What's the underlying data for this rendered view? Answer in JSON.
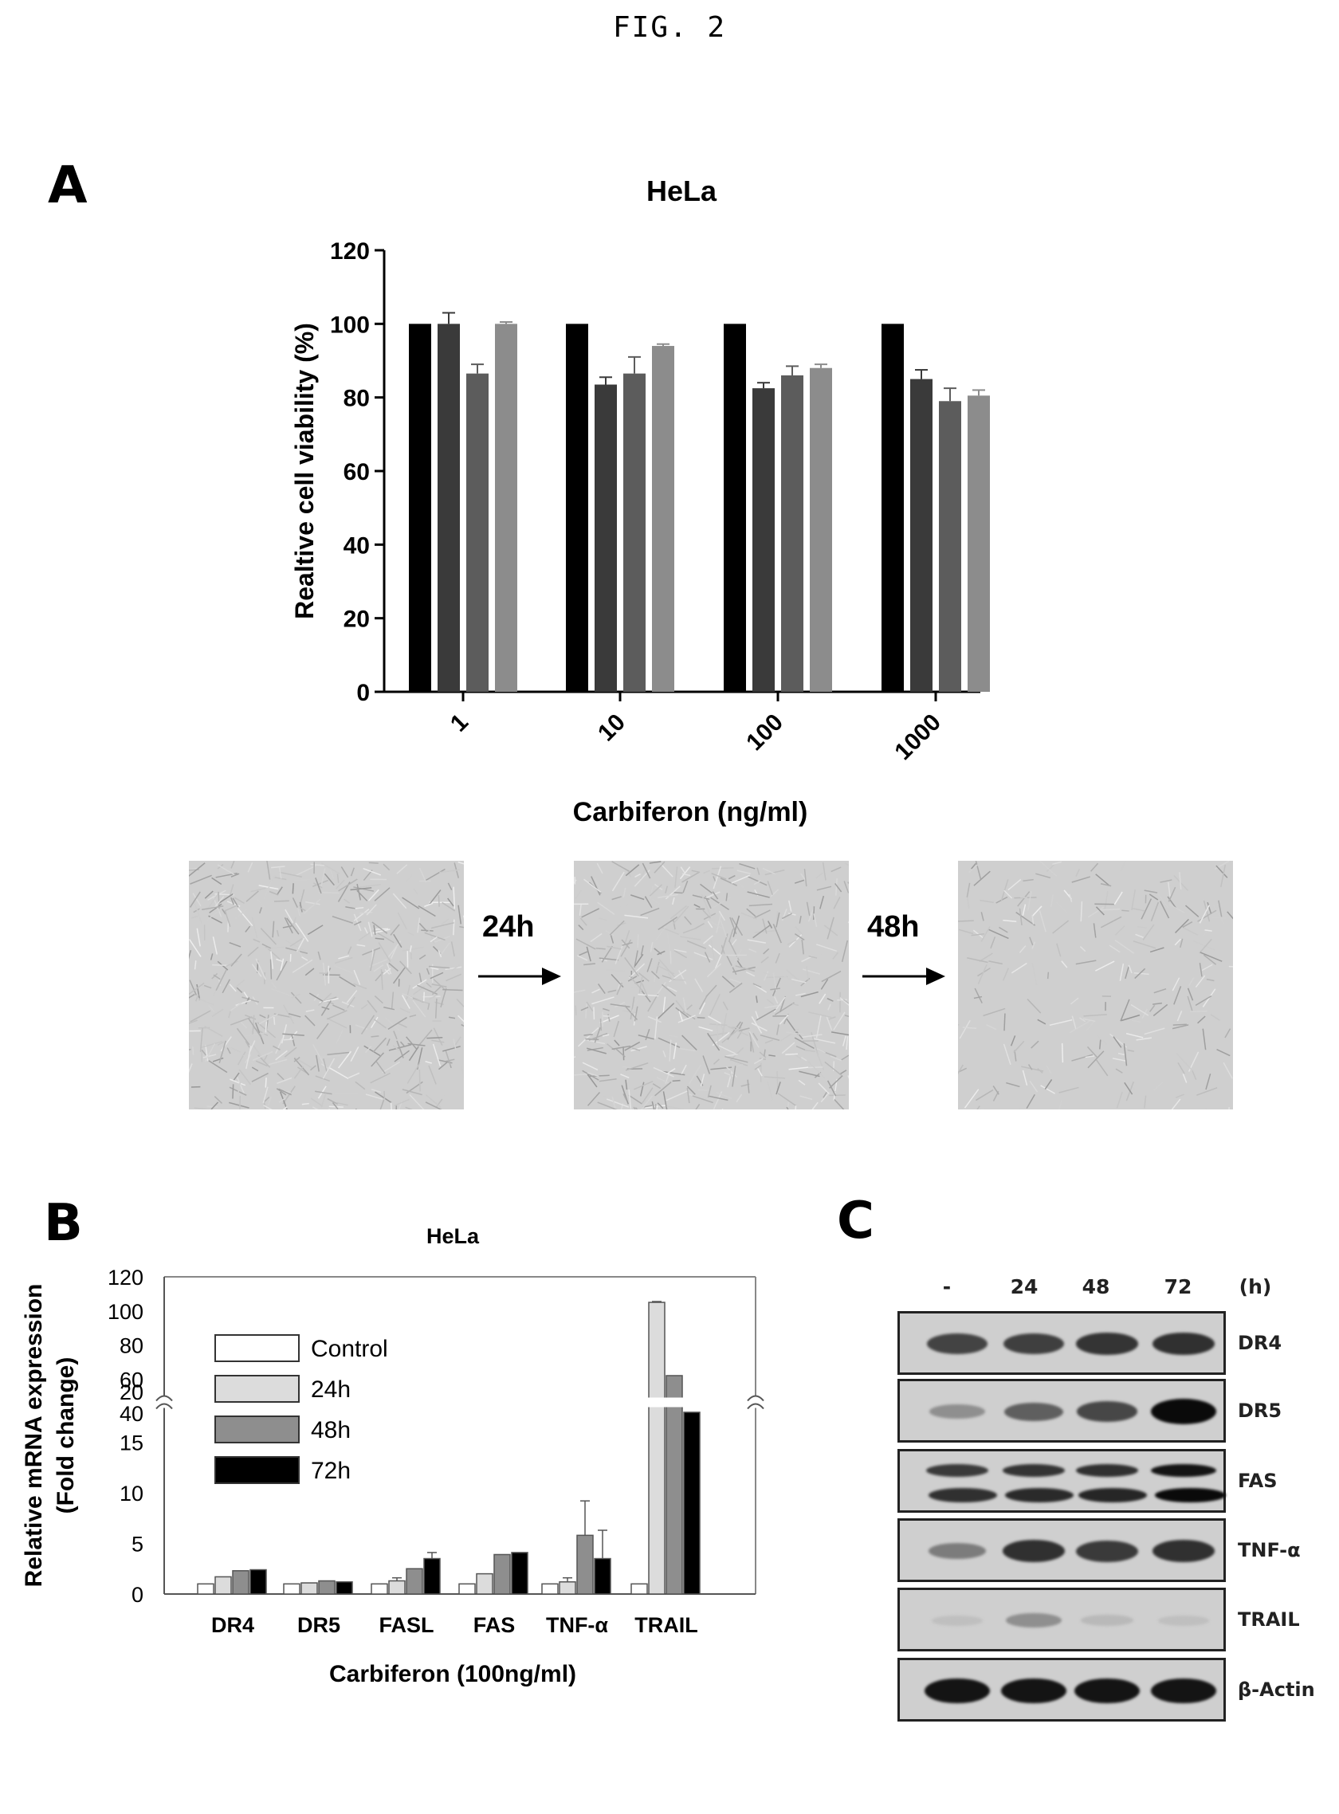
{
  "figure": {
    "title": "FIG. 2"
  },
  "panels": {
    "a": "A",
    "b": "B",
    "c": "C"
  },
  "chart_data": [
    {
      "type": "bar",
      "panel": "A",
      "title": "HeLa",
      "xlabel": "Carbiferon (ng/ml)",
      "ylabel": "Realtive cell viability (%)",
      "ylim": [
        0,
        120
      ],
      "yticks": [
        0,
        20,
        40,
        60,
        80,
        100,
        120
      ],
      "categories": [
        "1",
        "10",
        "100",
        "1000"
      ],
      "series": [
        {
          "values": [
            100,
            100,
            100,
            100
          ],
          "errors": [
            0,
            0,
            0,
            0
          ],
          "color": "#000000"
        },
        {
          "values": [
            100,
            83.5,
            82.5,
            85
          ],
          "errors": [
            3,
            2,
            1.5,
            2.5
          ],
          "color": "#3a3a3a"
        },
        {
          "values": [
            86.5,
            86.5,
            86,
            79
          ],
          "errors": [
            2.5,
            4.5,
            2.5,
            3.5
          ],
          "color": "#5c5c5c"
        },
        {
          "values": [
            100,
            94,
            88,
            80.5
          ],
          "errors": [
            0.5,
            0.5,
            1,
            1.5
          ],
          "color": "#8c8c8c"
        }
      ],
      "grid": false
    },
    {
      "type": "bar",
      "panel": "B",
      "title": "HeLa",
      "xlabel": "Carbiferon (100ng/ml)",
      "ylabel_line1": "Relative mRNA expression",
      "ylabel_line2": "(Fold change)",
      "axis_break": [
        20,
        40
      ],
      "lower_yticks": [
        0,
        5,
        10,
        15,
        20
      ],
      "upper_yticks": [
        40,
        60,
        80,
        100,
        120
      ],
      "categories": [
        "DR4",
        "DR5",
        "FASL",
        "FAS",
        "TNF-α",
        "TRAIL"
      ],
      "series": [
        {
          "name": "Control",
          "values": [
            1,
            1,
            1,
            1,
            1,
            1
          ],
          "errors": [
            0,
            0,
            0,
            0,
            0,
            0
          ],
          "color": "#ffffff"
        },
        {
          "name": "24h",
          "values": [
            1.7,
            1.1,
            1.3,
            2.0,
            1.2,
            105
          ],
          "errors": [
            0,
            0,
            0.3,
            0,
            0.4,
            0.5
          ],
          "color": "#dcdcdc"
        },
        {
          "name": "48h",
          "values": [
            2.3,
            1.3,
            2.5,
            3.9,
            5.8,
            62
          ],
          "errors": [
            0,
            0,
            0,
            0,
            3.4,
            0
          ],
          "color": "#8e8e8e"
        },
        {
          "name": "72h",
          "values": [
            2.4,
            1.2,
            3.5,
            4.1,
            3.5,
            40.5
          ],
          "errors": [
            0,
            0,
            0.6,
            0,
            2.8,
            0
          ],
          "color": "#000000"
        }
      ],
      "legend_position": "top-left"
    }
  ],
  "micrographs": {
    "arrows": [
      "24h",
      "48h"
    ]
  },
  "western_blot": {
    "lanes": [
      "-",
      "24",
      "48",
      "72"
    ],
    "unit": "(h)",
    "rows": [
      {
        "label": "DR4",
        "intensity": [
          0.7,
          0.72,
          0.78,
          0.8
        ]
      },
      {
        "label": "DR5",
        "intensity": [
          0.3,
          0.55,
          0.68,
          1.0
        ]
      },
      {
        "label": "FAS",
        "intensity": [
          0.75,
          0.78,
          0.8,
          0.95
        ]
      },
      {
        "label": "TNF-α",
        "intensity": [
          0.4,
          0.8,
          0.75,
          0.8
        ]
      },
      {
        "label": "TRAIL",
        "intensity": [
          0.05,
          0.3,
          0.08,
          0.05
        ]
      },
      {
        "label": "β-Actin",
        "intensity": [
          0.95,
          0.95,
          0.95,
          0.95
        ]
      }
    ]
  }
}
